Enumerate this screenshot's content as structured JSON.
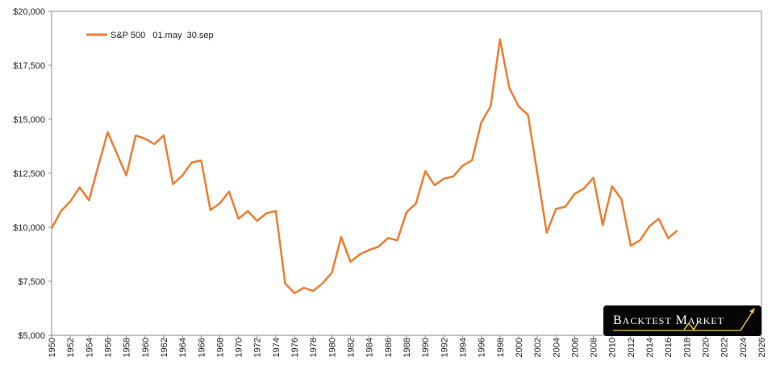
{
  "chart_data": {
    "type": "line",
    "title": "",
    "xlabel": "",
    "ylabel": "",
    "xlim": [
      1950,
      2026
    ],
    "ylim": [
      5000,
      20000
    ],
    "y_ticks": [
      5000,
      7500,
      10000,
      12500,
      15000,
      17500,
      20000
    ],
    "y_tick_labels": [
      "$5,000",
      "$7,500",
      "$10,000",
      "$12,500",
      "$15,000",
      "$17,500",
      "$20,000"
    ],
    "x_ticks": [
      1950,
      1952,
      1954,
      1956,
      1958,
      1960,
      1962,
      1964,
      1966,
      1968,
      1970,
      1972,
      1974,
      1976,
      1978,
      1980,
      1982,
      1984,
      1986,
      1988,
      1990,
      1992,
      1994,
      1996,
      1998,
      2000,
      2002,
      2004,
      2006,
      2008,
      2010,
      2012,
      2014,
      2016,
      2018,
      2020,
      2022,
      2024,
      2026
    ],
    "grid": false,
    "legend_position": "top-left",
    "series": [
      {
        "name": "S&P 500   01.may  30.sep",
        "color": "#ED7D31",
        "x": [
          1950,
          1951,
          1952,
          1953,
          1954,
          1955,
          1956,
          1957,
          1958,
          1959,
          1960,
          1961,
          1962,
          1963,
          1964,
          1965,
          1966,
          1967,
          1968,
          1969,
          1970,
          1971,
          1972,
          1973,
          1974,
          1975,
          1976,
          1977,
          1978,
          1979,
          1980,
          1981,
          1982,
          1983,
          1984,
          1985,
          1986,
          1987,
          1988,
          1989,
          1990,
          1991,
          1992,
          1993,
          1994,
          1995,
          1996,
          1997,
          1998,
          1999,
          2000,
          2001,
          2002,
          2003,
          2004,
          2005,
          2006,
          2007,
          2008,
          2009,
          2010,
          2011,
          2012,
          2013,
          2014,
          2015,
          2016,
          2017
        ],
        "values": [
          9950,
          10750,
          11200,
          11850,
          11250,
          12850,
          14400,
          13400,
          12400,
          14250,
          14100,
          13850,
          14250,
          12000,
          12400,
          13000,
          13100,
          10800,
          11100,
          11650,
          10400,
          10750,
          10300,
          10650,
          10750,
          7400,
          6950,
          7200,
          7050,
          7400,
          7900,
          9550,
          8400,
          8750,
          8950,
          9100,
          9500,
          9400,
          10700,
          11100,
          12600,
          11950,
          12250,
          12350,
          12850,
          13100,
          14850,
          15600,
          18700,
          16450,
          15600,
          15200,
          12500,
          9750,
          10850,
          10950,
          11550,
          11800,
          12300,
          10100,
          11900,
          11300,
          9150,
          9400,
          10050,
          10400,
          9500,
          9850
        ]
      }
    ],
    "logo": {
      "word1_initial": "B",
      "word1_rest": "ACKTEST",
      "word2_initial": "M",
      "word2_rest": "ARKET"
    }
  }
}
